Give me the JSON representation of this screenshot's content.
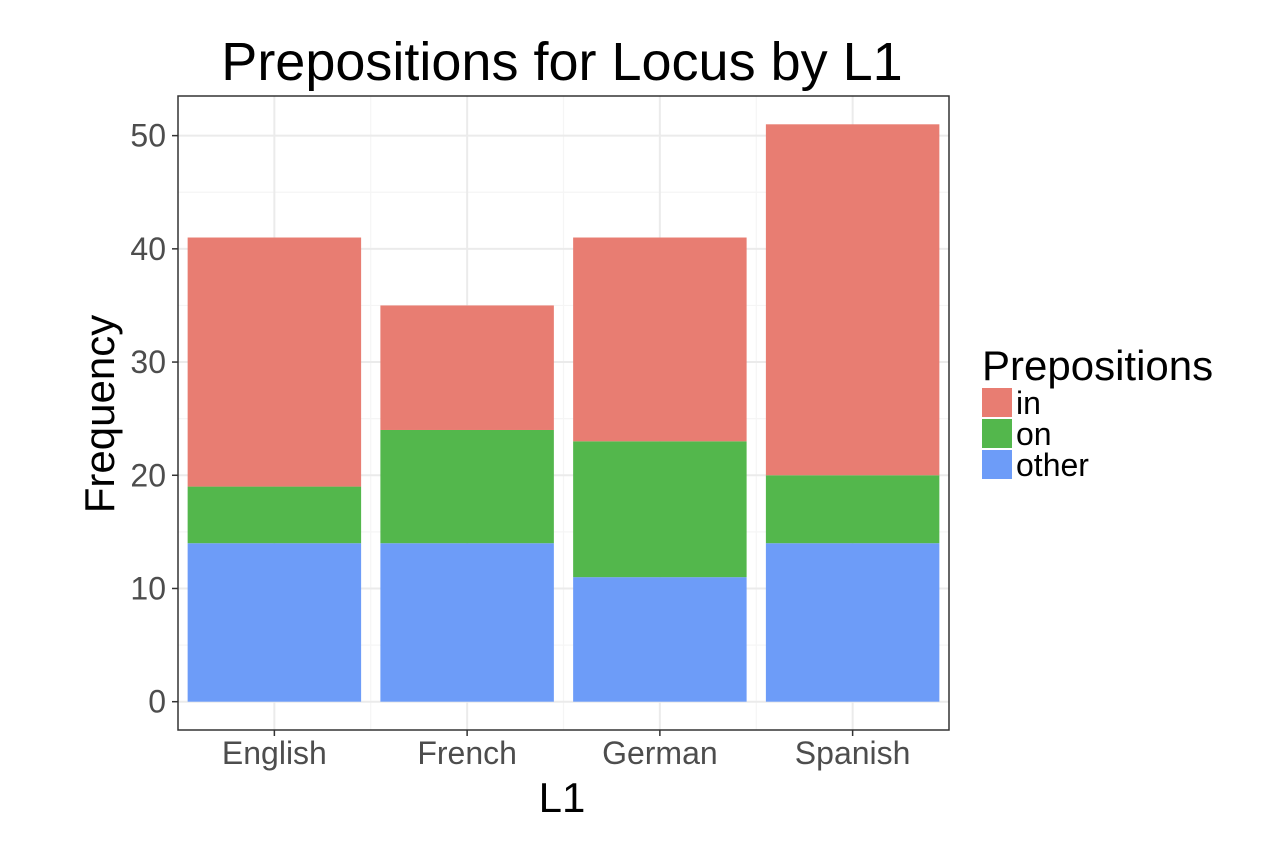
{
  "chart_data": {
    "type": "bar",
    "stacked": true,
    "title": "Prepositions for Locus by L1",
    "xlabel": "L1",
    "ylabel": "Frequency",
    "categories": [
      "English",
      "French",
      "German",
      "Spanish"
    ],
    "series": [
      {
        "name": "in",
        "values": [
          22,
          11,
          18,
          31
        ],
        "color": "#e87d72"
      },
      {
        "name": "on",
        "values": [
          5,
          10,
          12,
          6
        ],
        "color": "#53b74c"
      },
      {
        "name": "other",
        "values": [
          14,
          14,
          11,
          14
        ],
        "color": "#6d9cf8"
      }
    ],
    "stack_order_bottom_to_top": [
      "other",
      "on",
      "in"
    ],
    "yticks": [
      0,
      10,
      20,
      30,
      40,
      50
    ],
    "ylim": [
      -2.5,
      53.5
    ],
    "grid": true,
    "legend": {
      "title": "Prepositions",
      "placement": "right"
    }
  }
}
